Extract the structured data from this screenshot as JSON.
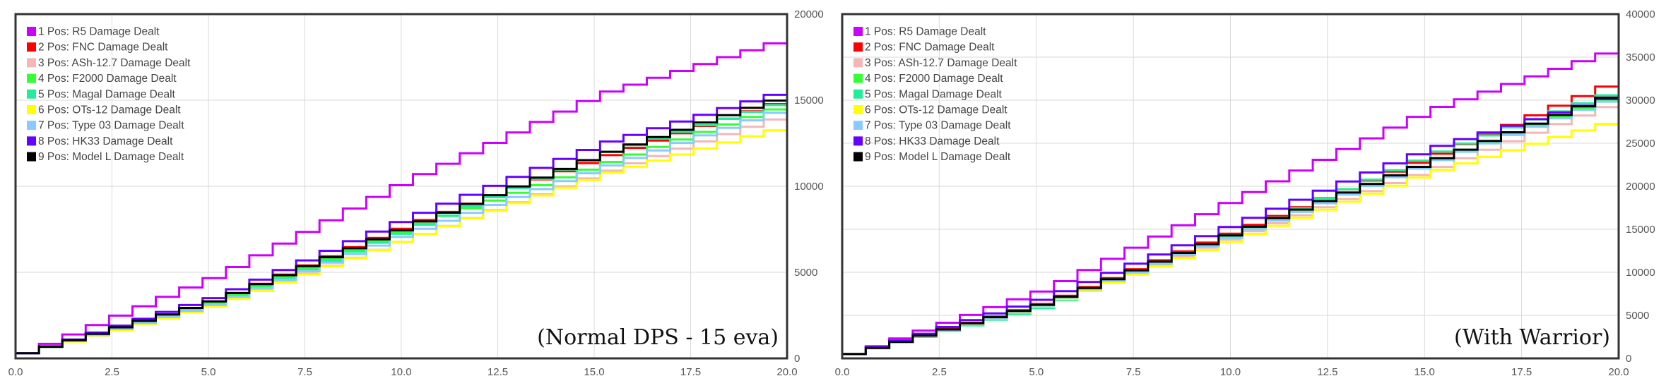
{
  "chart_data": [
    {
      "type": "line",
      "step": true,
      "annotation": "(Normal DPS - 15 eva)",
      "xlim": [
        0,
        20
      ],
      "ylim": [
        0,
        20000
      ],
      "xticks": [
        "0.0",
        "2.5",
        "5.0",
        "7.5",
        "10.0",
        "12.5",
        "15.0",
        "17.5",
        "20.0"
      ],
      "yticks": [
        "0",
        "5000",
        "10000",
        "15000",
        "20000"
      ],
      "y_axis_side": "right",
      "grid": true,
      "legend_position": "top-left",
      "series": [
        {
          "name": "1 Pos: R5 Damage Dealt",
          "color": "#cc00ff",
          "x": [
            0,
            5,
            10,
            15,
            20
          ],
          "y": [
            300,
            4800,
            10400,
            15400,
            18700
          ]
        },
        {
          "name": "2 Pos: FNC Damage Dealt",
          "color": "#ff0000",
          "x": [
            0,
            5,
            10,
            15,
            20
          ],
          "y": [
            300,
            3400,
            7800,
            11700,
            15200
          ]
        },
        {
          "name": "3 Pos: ASh-12.7 Damage Dealt",
          "color": "#f4b7b7",
          "x": [
            0,
            5,
            10,
            15,
            20
          ],
          "y": [
            300,
            3200,
            7000,
            10800,
            14300
          ]
        },
        {
          "name": "4 Pos: F2000 Damage Dealt",
          "color": "#33ff33",
          "x": [
            0,
            5,
            10,
            15,
            20
          ],
          "y": [
            300,
            3300,
            7600,
            11300,
            14900
          ]
        },
        {
          "name": "5 Pos: Magal Damage Dealt",
          "color": "#22ee99",
          "x": [
            0,
            5,
            10,
            15,
            20
          ],
          "y": [
            300,
            3200,
            7500,
            11900,
            15100
          ]
        },
        {
          "name": "6 Pos: OTs-12 Damage Dealt",
          "color": "#ffff00",
          "x": [
            0,
            5,
            10,
            15,
            20
          ],
          "y": [
            300,
            3100,
            7000,
            10700,
            13600
          ]
        },
        {
          "name": "7 Pos: Type 03 Damage Dealt",
          "color": "#88ccff",
          "x": [
            0,
            5,
            10,
            15,
            20
          ],
          "y": [
            300,
            3200,
            7300,
            11100,
            14700
          ]
        },
        {
          "name": "8 Pos: HK33 Damage Dealt",
          "color": "#6600ff",
          "x": [
            0,
            5,
            10,
            15,
            20
          ],
          "y": [
            300,
            3600,
            8200,
            12500,
            15700
          ]
        },
        {
          "name": "9 Pos: Model L Damage Dealt",
          "color": "#000000",
          "x": [
            0,
            5,
            10,
            15,
            20
          ],
          "y": [
            300,
            3400,
            7700,
            11900,
            15400
          ]
        }
      ]
    },
    {
      "type": "line",
      "step": true,
      "annotation": "(With Warrior)",
      "xlim": [
        0,
        20
      ],
      "ylim": [
        0,
        40000
      ],
      "xticks": [
        "0.0",
        "2.5",
        "5.0",
        "7.5",
        "10.0",
        "12.5",
        "15.0",
        "17.5",
        "20.0"
      ],
      "yticks": [
        "0",
        "5000",
        "10000",
        "15000",
        "20000",
        "25000",
        "30000",
        "35000",
        "40000"
      ],
      "y_axis_side": "right",
      "grid": true,
      "legend_position": "top-left",
      "series": [
        {
          "name": "1 Pos: R5 Damage Dealt",
          "color": "#cc00ff",
          "x": [
            0,
            5,
            10,
            15,
            20
          ],
          "y": [
            500,
            8000,
            18700,
            29000,
            36300
          ]
        },
        {
          "name": "2 Pos: FNC Damage Dealt",
          "color": "#ff0000",
          "x": [
            0,
            5,
            10,
            15,
            20
          ],
          "y": [
            500,
            6500,
            15000,
            23500,
            32700
          ]
        },
        {
          "name": "3 Pos: ASh-12.7 Damage Dealt",
          "color": "#f4b7b7",
          "x": [
            0,
            5,
            10,
            15,
            20
          ],
          "y": [
            500,
            6300,
            14300,
            22000,
            30200
          ]
        },
        {
          "name": "4 Pos: F2000 Damage Dealt",
          "color": "#33ff33",
          "x": [
            0,
            5,
            10,
            15,
            20
          ],
          "y": [
            500,
            6400,
            14800,
            23000,
            31000
          ]
        },
        {
          "name": "5 Pos: Magal Damage Dealt",
          "color": "#22ee99",
          "x": [
            0,
            5,
            10,
            15,
            20
          ],
          "y": [
            500,
            6000,
            14700,
            23800,
            31500
          ]
        },
        {
          "name": "6 Pos: OTs-12 Damage Dealt",
          "color": "#ffff00",
          "x": [
            0,
            5,
            10,
            15,
            20
          ],
          "y": [
            500,
            6200,
            14000,
            21700,
            28000
          ]
        },
        {
          "name": "7 Pos: Type 03 Damage Dealt",
          "color": "#88ccff",
          "x": [
            0,
            5,
            10,
            15,
            20
          ],
          "y": [
            500,
            6300,
            14500,
            22800,
            30800
          ]
        },
        {
          "name": "8 Pos: HK33 Damage Dealt",
          "color": "#6600ff",
          "x": [
            0,
            5,
            10,
            15,
            20
          ],
          "y": [
            500,
            7000,
            15800,
            24500,
            30900
          ]
        },
        {
          "name": "9 Pos: Model L Damage Dealt",
          "color": "#000000",
          "x": [
            0,
            5,
            10,
            15,
            20
          ],
          "y": [
            500,
            6400,
            14800,
            23000,
            31300
          ]
        }
      ]
    }
  ]
}
